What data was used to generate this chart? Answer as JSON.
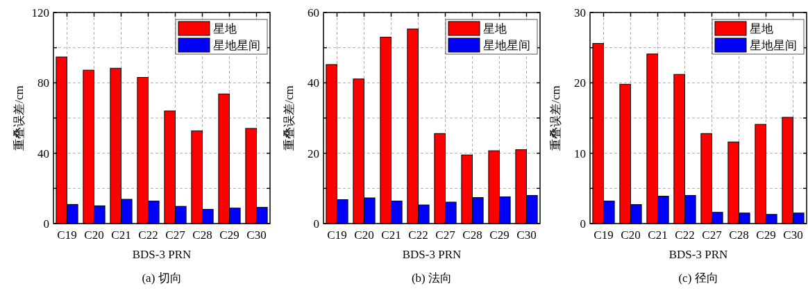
{
  "chart_data": [
    {
      "type": "bar",
      "categories": [
        "C19",
        "C20",
        "C21",
        "C22",
        "C27",
        "C28",
        "C29",
        "C30"
      ],
      "xlabel": "BDS-3 PRN",
      "ylabel": "重叠误差/cm",
      "annotations": [
        "(a) 切向"
      ],
      "ylim": [
        0,
        120
      ],
      "yticks": [
        0,
        {
          "value": 20,
          "label": null
        },
        40,
        {
          "value": 60,
          "label": null
        },
        80,
        {
          "value": 100,
          "label": null
        },
        120
      ],
      "grid": true,
      "legend": "top right",
      "series": [
        {
          "name": "星地",
          "color": "#ff0000",
          "values": [
            94.7,
            87.2,
            88.3,
            83.1,
            64.0,
            52.7,
            73.7,
            54.1
          ]
        },
        {
          "name": "星地星间",
          "color": "#0000ff",
          "values": [
            10.9,
            10.1,
            13.8,
            12.8,
            9.8,
            8.1,
            8.8,
            9.2
          ]
        }
      ]
    },
    {
      "type": "bar",
      "categories": [
        "C19",
        "C20",
        "C21",
        "C22",
        "C27",
        "C28",
        "C29",
        "C30"
      ],
      "xlabel": "BDS-3 PRN",
      "ylabel": "重叠误差/cm",
      "annotations": [
        "(b) 法向"
      ],
      "ylim": [
        0,
        60
      ],
      "yticks": [
        0,
        {
          "value": 10,
          "label": null
        },
        20,
        {
          "value": 30,
          "label": null
        },
        40,
        {
          "value": 50,
          "label": null
        },
        60
      ],
      "grid": true,
      "legend": "top right",
      "series": [
        {
          "name": "星地",
          "color": "#ff0000",
          "values": [
            45.2,
            41.1,
            53.0,
            55.3,
            25.6,
            19.5,
            20.7,
            21.0
          ]
        },
        {
          "name": "星地星间",
          "color": "#0000ff",
          "values": [
            6.8,
            7.3,
            6.4,
            5.3,
            6.1,
            7.4,
            7.6,
            8.0
          ]
        }
      ]
    },
    {
      "type": "bar",
      "categories": [
        "C19",
        "C20",
        "C21",
        "C22",
        "C27",
        "C28",
        "C29",
        "C30"
      ],
      "xlabel": "BDS-3 PRN",
      "ylabel": "重叠误差/cm",
      "annotations": [
        "(c) 径向"
      ],
      "ylim": [
        0,
        30
      ],
      "yticks": [
        0,
        {
          "value": 5,
          "label": null
        },
        10,
        {
          "value": 15,
          "label": null
        },
        20,
        {
          "value": 25,
          "label": null
        },
        30
      ],
      "grid": true,
      "legend": "top right",
      "series": [
        {
          "name": "星地",
          "color": "#ff0000",
          "values": [
            25.6,
            19.8,
            24.1,
            21.2,
            12.8,
            11.6,
            14.1,
            15.1
          ]
        },
        {
          "name": "星地星间",
          "color": "#0000ff",
          "values": [
            3.2,
            2.7,
            3.9,
            4.0,
            1.6,
            1.5,
            1.3,
            1.5
          ]
        }
      ]
    }
  ]
}
